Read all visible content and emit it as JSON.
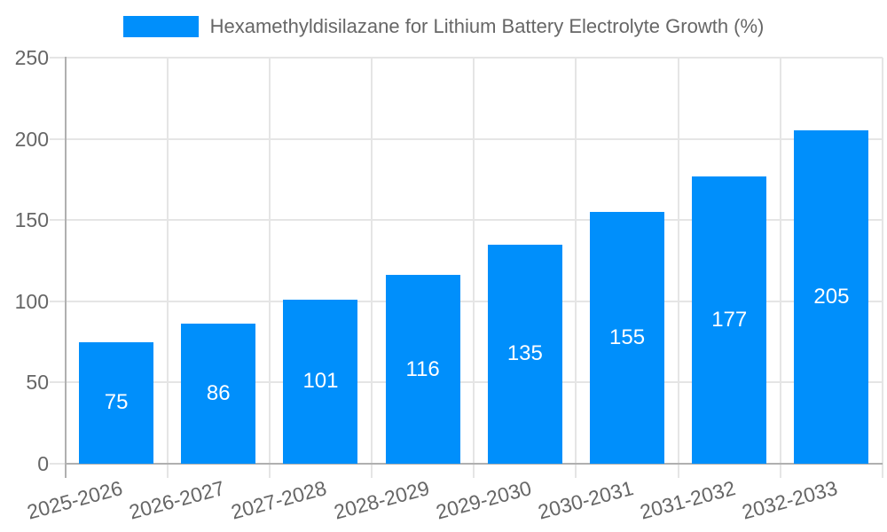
{
  "chart_data": {
    "type": "bar",
    "title": "Hexamethyldisilazane for Lithium Battery Electrolyte Growth (%)",
    "categories": [
      "2025-2026",
      "2026-2027",
      "2027-2028",
      "2028-2029",
      "2029-2030",
      "2030-2031",
      "2031-2032",
      "2032-2033"
    ],
    "values": [
      75,
      86,
      101,
      116,
      135,
      155,
      177,
      205
    ],
    "series": [
      {
        "name": "Hexamethyldisilazane for Lithium Battery Electrolyte Growth (%)",
        "values": [
          75,
          86,
          101,
          116,
          135,
          155,
          177,
          205
        ]
      }
    ],
    "xlabel": "",
    "ylabel": "",
    "ylim": [
      0,
      250
    ],
    "yticks": [
      0,
      50,
      100,
      150,
      200,
      250
    ],
    "grid": true,
    "legend_position": "top-center",
    "x_tick_rotation_deg": -15,
    "value_labels": "inside-center",
    "colors": {
      "bar": "#008FFB",
      "value_label": "#ffffff",
      "axis_text": "#666666",
      "grid": "#e5e5e5",
      "axis_line": "#b0b0b0",
      "background": "#ffffff"
    }
  }
}
